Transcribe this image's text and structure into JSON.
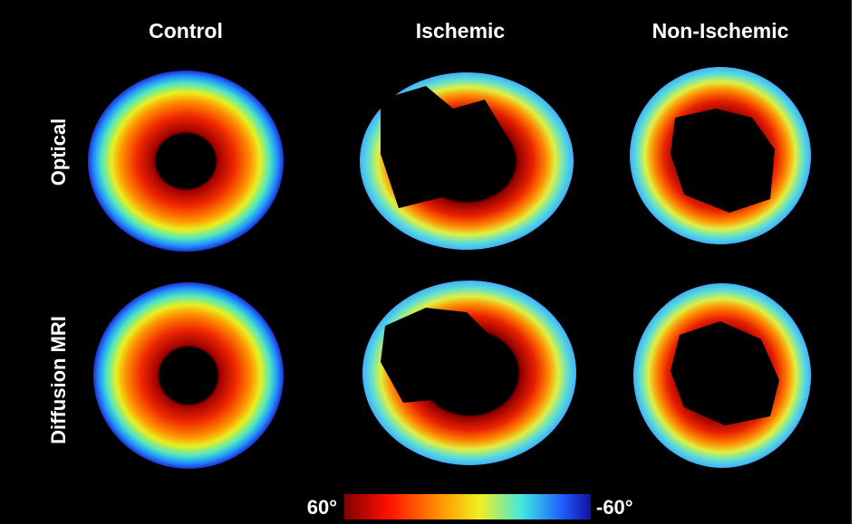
{
  "columns": [
    "Control",
    "Ischemic",
    "Non-Ischemic"
  ],
  "rows": [
    "Optical",
    "Diffusion MRI"
  ],
  "colorbar": {
    "max_label": "60°",
    "min_label": "-60°"
  }
}
